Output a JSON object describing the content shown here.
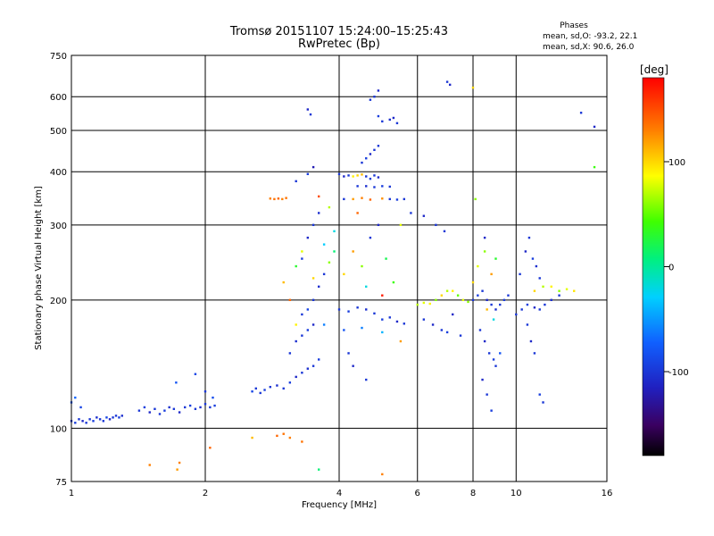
{
  "chart_data": {
    "type": "scatter",
    "title": "Tromsø 20151107 15:24:00–15:25:43",
    "subtitle": "RwPretec (Bp)",
    "xlabel": "Frequency [MHz]",
    "ylabel": "Stationary phase Virtual Height [km]",
    "x_scale": "log",
    "y_scale": "log",
    "xlim": [
      1,
      16
    ],
    "ylim": [
      75,
      750
    ],
    "x_ticks": [
      1,
      2,
      4,
      6,
      8,
      10,
      16
    ],
    "y_ticks": [
      75,
      100,
      200,
      300,
      400,
      500,
      600,
      750
    ],
    "grid": true,
    "phase_legend": {
      "title": "Phases",
      "line_o": "mean, sd,O:  -93.2, 22.1",
      "line_x": "mean, sd,X:  90.6, 26.0"
    },
    "colorbar": {
      "label": "[deg]",
      "range": [
        -180,
        180
      ],
      "ticks": [
        100,
        0,
        -100
      ]
    },
    "series": [
      {
        "points": [
          [
            1.0,
            104,
            -100
          ],
          [
            1.02,
            103,
            -95
          ],
          [
            1.04,
            105,
            -100
          ],
          [
            1.06,
            104,
            -110
          ],
          [
            1.08,
            103,
            -100
          ],
          [
            1.1,
            105,
            -100
          ],
          [
            1.12,
            104,
            -95
          ],
          [
            1.14,
            106,
            -105
          ],
          [
            1.16,
            105,
            -100
          ],
          [
            1.18,
            104,
            -100
          ],
          [
            1.2,
            106,
            -90
          ],
          [
            1.22,
            105,
            -110
          ],
          [
            1.24,
            106,
            -100
          ],
          [
            1.26,
            107,
            -100
          ],
          [
            1.28,
            106,
            -95
          ],
          [
            1.3,
            107,
            -105
          ],
          [
            1.0,
            115,
            -80
          ],
          [
            1.02,
            118,
            -70
          ],
          [
            1.05,
            112,
            -90
          ],
          [
            1.42,
            110,
            -100
          ],
          [
            1.46,
            112,
            -95
          ],
          [
            1.5,
            109,
            -110
          ],
          [
            1.54,
            111,
            -100
          ],
          [
            1.58,
            108,
            -100
          ],
          [
            1.62,
            110,
            -95
          ],
          [
            1.66,
            112,
            -105
          ],
          [
            1.7,
            111,
            -100
          ],
          [
            1.75,
            109,
            -110
          ],
          [
            1.8,
            112,
            -100
          ],
          [
            1.85,
            113,
            -95
          ],
          [
            1.9,
            111,
            -100
          ],
          [
            1.95,
            112,
            -105
          ],
          [
            2.0,
            114,
            -100
          ],
          [
            2.05,
            112,
            -100
          ],
          [
            2.1,
            113,
            -95
          ],
          [
            1.72,
            128,
            -80
          ],
          [
            1.9,
            134,
            -90
          ],
          [
            2.0,
            122,
            -100
          ],
          [
            2.08,
            118,
            -85
          ],
          [
            2.55,
            122,
            -90
          ],
          [
            2.6,
            124,
            -100
          ],
          [
            2.66,
            121,
            -100
          ],
          [
            2.72,
            123,
            -95
          ],
          [
            2.8,
            125,
            -100
          ],
          [
            2.9,
            126,
            -105
          ],
          [
            3.0,
            124,
            -100
          ],
          [
            3.1,
            128,
            -95
          ],
          [
            3.2,
            132,
            -110
          ],
          [
            3.3,
            135,
            -100
          ],
          [
            3.4,
            138,
            -105
          ],
          [
            3.5,
            140,
            -100
          ],
          [
            3.6,
            145,
            -95
          ],
          [
            2.8,
            346,
            130
          ],
          [
            2.86,
            345,
            135
          ],
          [
            2.92,
            346,
            140
          ],
          [
            2.98,
            345,
            130
          ],
          [
            3.04,
            347,
            135
          ],
          [
            2.9,
            96,
            140
          ],
          [
            3.0,
            97,
            135
          ],
          [
            3.1,
            95,
            130
          ],
          [
            3.1,
            150,
            -100
          ],
          [
            3.2,
            160,
            -105
          ],
          [
            3.3,
            165,
            -100
          ],
          [
            3.4,
            170,
            -95
          ],
          [
            3.5,
            175,
            -110
          ],
          [
            3.3,
            185,
            -100
          ],
          [
            3.4,
            190,
            -90
          ],
          [
            3.5,
            200,
            -100
          ],
          [
            3.6,
            215,
            -105
          ],
          [
            3.7,
            230,
            -100
          ],
          [
            3.3,
            250,
            -95
          ],
          [
            3.4,
            280,
            -110
          ],
          [
            3.5,
            300,
            -100
          ],
          [
            3.6,
            320,
            -105
          ],
          [
            3.2,
            380,
            -100
          ],
          [
            3.4,
            395,
            -95
          ],
          [
            3.5,
            410,
            -120
          ],
          [
            3.4,
            560,
            -110
          ],
          [
            3.45,
            545,
            -100
          ],
          [
            3.2,
            240,
            30
          ],
          [
            3.3,
            260,
            80
          ],
          [
            3.5,
            225,
            100
          ],
          [
            3.7,
            270,
            -30
          ],
          [
            3.8,
            245,
            60
          ],
          [
            3.9,
            260,
            10
          ],
          [
            3.6,
            350,
            150
          ],
          [
            3.8,
            330,
            70
          ],
          [
            3.9,
            290,
            -20
          ],
          [
            3.0,
            220,
            110
          ],
          [
            3.1,
            200,
            140
          ],
          [
            3.2,
            175,
            90
          ],
          [
            3.7,
            175,
            -60
          ],
          [
            4.0,
            395,
            -100
          ],
          [
            4.1,
            390,
            -110
          ],
          [
            4.2,
            392,
            -100
          ],
          [
            4.3,
            390,
            90
          ],
          [
            4.4,
            392,
            100
          ],
          [
            4.5,
            394,
            110
          ],
          [
            4.6,
            390,
            -100
          ],
          [
            4.7,
            385,
            -95
          ],
          [
            4.8,
            392,
            -100
          ],
          [
            4.9,
            388,
            -110
          ],
          [
            4.1,
            345,
            -100
          ],
          [
            4.3,
            345,
            120
          ],
          [
            4.5,
            347,
            130
          ],
          [
            4.7,
            344,
            140
          ],
          [
            5.0,
            346,
            125
          ],
          [
            5.2,
            345,
            -100
          ],
          [
            5.4,
            344,
            -95
          ],
          [
            5.6,
            345,
            -100
          ],
          [
            4.4,
            370,
            -100
          ],
          [
            4.6,
            370,
            -105
          ],
          [
            4.8,
            368,
            -100
          ],
          [
            5.0,
            370,
            -95
          ],
          [
            5.2,
            369,
            -100
          ],
          [
            4.5,
            420,
            -100
          ],
          [
            4.6,
            430,
            -95
          ],
          [
            4.7,
            440,
            -110
          ],
          [
            4.8,
            450,
            -100
          ],
          [
            4.9,
            460,
            -100
          ],
          [
            4.8,
            600,
            -100
          ],
          [
            4.9,
            620,
            -110
          ],
          [
            4.7,
            590,
            -100
          ],
          [
            4.9,
            540,
            -95
          ],
          [
            5.0,
            525,
            -100
          ],
          [
            5.2,
            530,
            -105
          ],
          [
            5.4,
            520,
            -100
          ],
          [
            5.3,
            535,
            -110
          ],
          [
            4.0,
            190,
            -100
          ],
          [
            4.2,
            188,
            -95
          ],
          [
            4.4,
            192,
            -100
          ],
          [
            4.6,
            190,
            -105
          ],
          [
            4.8,
            186,
            -100
          ],
          [
            5.0,
            180,
            -95
          ],
          [
            5.2,
            182,
            -100
          ],
          [
            5.4,
            178,
            -110
          ],
          [
            5.6,
            176,
            -100
          ],
          [
            4.1,
            170,
            -80
          ],
          [
            4.5,
            172,
            -60
          ],
          [
            5.0,
            168,
            -40
          ],
          [
            4.1,
            230,
            100
          ],
          [
            4.3,
            260,
            120
          ],
          [
            4.5,
            240,
            60
          ],
          [
            4.7,
            280,
            -100
          ],
          [
            4.9,
            300,
            -110
          ],
          [
            5.1,
            250,
            20
          ],
          [
            5.3,
            220,
            40
          ],
          [
            5.5,
            300,
            80
          ],
          [
            4.4,
            320,
            140
          ],
          [
            4.6,
            215,
            -20
          ],
          [
            5.0,
            205,
            170
          ],
          [
            5.5,
            160,
            120
          ],
          [
            4.2,
            150,
            -100
          ],
          [
            4.3,
            140,
            -110
          ],
          [
            4.6,
            130,
            -100
          ],
          [
            6.0,
            195,
            70
          ],
          [
            6.2,
            197,
            80
          ],
          [
            6.4,
            196,
            90
          ],
          [
            6.6,
            200,
            60
          ],
          [
            6.8,
            205,
            100
          ],
          [
            7.0,
            210,
            70
          ],
          [
            7.2,
            210,
            90
          ],
          [
            7.4,
            205,
            50
          ],
          [
            7.6,
            200,
            80
          ],
          [
            7.8,
            198,
            60
          ],
          [
            6.2,
            180,
            -100
          ],
          [
            6.5,
            175,
            -110
          ],
          [
            6.8,
            170,
            -100
          ],
          [
            7.0,
            168,
            -95
          ],
          [
            7.5,
            165,
            -100
          ],
          [
            7.2,
            185,
            -110
          ],
          [
            8.0,
            200,
            -100
          ],
          [
            8.2,
            205,
            -95
          ],
          [
            8.4,
            210,
            -100
          ],
          [
            8.6,
            200,
            -110
          ],
          [
            8.8,
            195,
            -100
          ],
          [
            9.0,
            190,
            -105
          ],
          [
            9.2,
            195,
            -100
          ],
          [
            9.4,
            200,
            -95
          ],
          [
            9.6,
            205,
            -100
          ],
          [
            8.0,
            220,
            100
          ],
          [
            8.2,
            240,
            80
          ],
          [
            8.5,
            260,
            60
          ],
          [
            8.8,
            230,
            120
          ],
          [
            9.0,
            250,
            30
          ],
          [
            8.6,
            190,
            110
          ],
          [
            8.9,
            180,
            -20
          ],
          [
            8.3,
            170,
            -100
          ],
          [
            8.5,
            160,
            -110
          ],
          [
            8.7,
            150,
            -100
          ],
          [
            8.9,
            145,
            -95
          ],
          [
            9.0,
            140,
            -100
          ],
          [
            8.4,
            130,
            -110
          ],
          [
            8.6,
            120,
            -100
          ],
          [
            8.8,
            110,
            -95
          ],
          [
            9.2,
            150,
            -80
          ],
          [
            10.0,
            185,
            -100
          ],
          [
            10.3,
            190,
            -100
          ],
          [
            10.6,
            195,
            -95
          ],
          [
            11.0,
            192,
            -110
          ],
          [
            11.3,
            190,
            -100
          ],
          [
            11.6,
            195,
            -100
          ],
          [
            12.0,
            200,
            -105
          ],
          [
            12.5,
            205,
            -100
          ],
          [
            11.0,
            210,
            100
          ],
          [
            11.5,
            215,
            70
          ],
          [
            12.0,
            215,
            90
          ],
          [
            12.5,
            210,
            60
          ],
          [
            13.0,
            212,
            80
          ],
          [
            13.5,
            210,
            95
          ],
          [
            10.2,
            230,
            -100
          ],
          [
            10.5,
            260,
            -110
          ],
          [
            10.7,
            280,
            -100
          ],
          [
            10.9,
            250,
            -95
          ],
          [
            11.1,
            240,
            -105
          ],
          [
            11.3,
            225,
            -100
          ],
          [
            10.6,
            175,
            -100
          ],
          [
            10.8,
            160,
            -110
          ],
          [
            11.0,
            150,
            -100
          ],
          [
            11.3,
            120,
            -95
          ],
          [
            11.5,
            115,
            -100
          ],
          [
            7.0,
            650,
            -100
          ],
          [
            7.1,
            640,
            -110
          ],
          [
            8.0,
            630,
            100
          ],
          [
            14.0,
            550,
            -100
          ],
          [
            15.0,
            510,
            -110
          ],
          [
            15.0,
            410,
            40
          ],
          [
            6.9,
            290,
            -100
          ],
          [
            6.2,
            315,
            -110
          ],
          [
            6.6,
            300,
            -100
          ],
          [
            8.1,
            345,
            60
          ],
          [
            8.5,
            280,
            -110
          ],
          [
            5.8,
            320,
            -100
          ],
          [
            1.73,
            80,
            120
          ],
          [
            1.75,
            83,
            130
          ],
          [
            2.05,
            90,
            140
          ],
          [
            2.55,
            95,
            110
          ],
          [
            1.5,
            82,
            130
          ],
          [
            3.6,
            80,
            10
          ],
          [
            5.0,
            78,
            130
          ],
          [
            3.3,
            93,
            135
          ]
        ]
      }
    ]
  }
}
